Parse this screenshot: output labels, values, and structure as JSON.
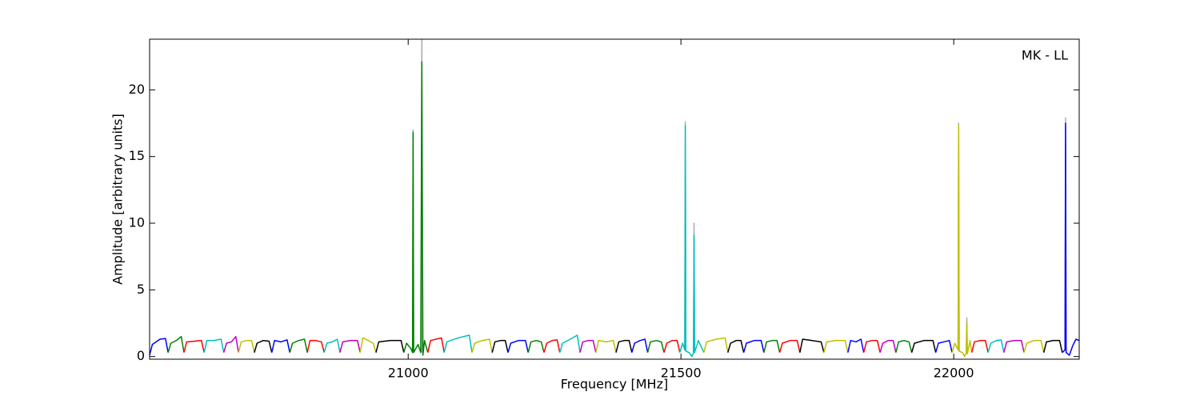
{
  "chart_data": {
    "type": "line",
    "annotation": "MK - LL",
    "x_label": "Frequency [MHz]",
    "y_label": "Amplitude [arbitrary units]",
    "xlim": [
      20526,
      22230
    ],
    "ylim": [
      -0.2,
      23.8
    ],
    "xticks": [
      21000,
      21500,
      22000
    ],
    "yticks": [
      0,
      5,
      10,
      15,
      20
    ],
    "series": [
      {
        "color": "#aaaaaa",
        "x": [
          21008,
          21009,
          21010,
          21010,
          21024,
          21025,
          21026,
          21026,
          21507,
          21508,
          21509,
          21509,
          21523,
          21524,
          21525,
          21525,
          22008,
          22009,
          22010,
          22010,
          22023,
          22024,
          22025,
          22025,
          22204,
          22205,
          22206
        ],
        "values": [
          0.3,
          17.0,
          0.3,
          null,
          0.3,
          23.8,
          0.3,
          null,
          0.5,
          17.6,
          0.4,
          null,
          0.3,
          10.0,
          0.3,
          null,
          0.5,
          17.5,
          0.4,
          null,
          0.3,
          2.9,
          0.2,
          null,
          0.5,
          17.9,
          0.3
        ]
      },
      {
        "color": "#0000ff",
        "x": [
          20526,
          20531,
          20545,
          20555,
          20560
        ],
        "values": [
          0.1,
          0.9,
          1.3,
          1.35,
          0.3
        ]
      },
      {
        "color": "#008000",
        "x": [
          20560,
          20565,
          20575,
          20584,
          20589
        ],
        "values": [
          0.3,
          1.0,
          1.2,
          1.5,
          0.3
        ]
      },
      {
        "color": "#ff0000",
        "x": [
          20589,
          20594,
          20608,
          20621,
          20626
        ],
        "values": [
          0.3,
          1.1,
          1.15,
          1.2,
          0.3
        ]
      },
      {
        "color": "#00bfbf",
        "x": [
          20626,
          20631,
          20644,
          20657,
          20662
        ],
        "values": [
          0.3,
          1.2,
          1.2,
          1.3,
          0.3
        ]
      },
      {
        "color": "#bf00bf",
        "x": [
          20662,
          20667,
          20676,
          20684,
          20689
        ],
        "values": [
          0.3,
          1.0,
          1.1,
          1.5,
          0.3
        ]
      },
      {
        "color": "#bfbf00",
        "x": [
          20689,
          20694,
          20704,
          20713,
          20718
        ],
        "values": [
          0.3,
          1.1,
          1.2,
          1.2,
          0.3
        ]
      },
      {
        "color": "#000000",
        "x": [
          20718,
          20723,
          20734,
          20745,
          20750
        ],
        "values": [
          0.3,
          1.0,
          1.2,
          1.15,
          0.3
        ]
      },
      {
        "color": "#0000ff",
        "x": [
          20750,
          20755,
          20767,
          20778,
          20783
        ],
        "values": [
          0.3,
          1.2,
          1.1,
          1.25,
          0.3
        ]
      },
      {
        "color": "#008000",
        "x": [
          20783,
          20788,
          20799,
          20810,
          20815
        ],
        "values": [
          0.3,
          1.0,
          1.2,
          1.3,
          0.3
        ]
      },
      {
        "color": "#ff0000",
        "x": [
          20815,
          20820,
          20831,
          20841,
          20846
        ],
        "values": [
          0.3,
          1.2,
          1.2,
          1.1,
          0.3
        ]
      },
      {
        "color": "#00bfbf",
        "x": [
          20846,
          20851,
          20861,
          20870,
          20875
        ],
        "values": [
          0.3,
          1.0,
          1.1,
          1.3,
          0.3
        ]
      },
      {
        "color": "#bf00bf",
        "x": [
          20875,
          20880,
          20894,
          20907,
          20912
        ],
        "values": [
          0.3,
          1.1,
          1.2,
          1.2,
          0.3
        ]
      },
      {
        "color": "#bfbf00",
        "x": [
          20912,
          20917,
          20927,
          20936,
          20941
        ],
        "values": [
          0.3,
          1.4,
          1.2,
          1.0,
          0.3
        ]
      },
      {
        "color": "#000000",
        "x": [
          20941,
          20946,
          20967,
          20987,
          20992
        ],
        "values": [
          0.3,
          1.1,
          1.2,
          1.2,
          0.3
        ]
      },
      {
        "color": "#008000",
        "x": [
          20992,
          20997,
          21005,
          21008,
          21009,
          21010,
          21018,
          21023,
          21025,
          21027,
          21030,
          21036
        ],
        "values": [
          0.3,
          1.0,
          0.6,
          0.3,
          16.8,
          0.3,
          0.9,
          0.3,
          22.1,
          0.1,
          1.2,
          0.3
        ]
      },
      {
        "color": "#ff0000",
        "x": [
          21036,
          21041,
          21051,
          21061,
          21066
        ],
        "values": [
          0.3,
          1.2,
          1.3,
          1.4,
          0.3
        ]
      },
      {
        "color": "#00bfbf",
        "x": [
          21066,
          21071,
          21092,
          21112,
          21117
        ],
        "values": [
          0.3,
          1.1,
          1.4,
          1.6,
          0.3
        ]
      },
      {
        "color": "#bfbf00",
        "x": [
          21117,
          21122,
          21136,
          21149,
          21154
        ],
        "values": [
          0.3,
          1.0,
          1.2,
          1.3,
          0.3
        ]
      },
      {
        "color": "#000000",
        "x": [
          21154,
          21159,
          21169,
          21178,
          21183
        ],
        "values": [
          0.3,
          1.1,
          1.2,
          1.2,
          0.3
        ]
      },
      {
        "color": "#0000ff",
        "x": [
          21183,
          21188,
          21202,
          21215,
          21220
        ],
        "values": [
          0.3,
          1.0,
          1.2,
          1.2,
          0.3
        ]
      },
      {
        "color": "#008000",
        "x": [
          21220,
          21225,
          21235,
          21244,
          21249
        ],
        "values": [
          0.3,
          1.1,
          1.2,
          1.1,
          0.3
        ]
      },
      {
        "color": "#ff0000",
        "x": [
          21249,
          21254,
          21264,
          21273,
          21278
        ],
        "values": [
          0.3,
          1.0,
          1.2,
          1.25,
          0.3
        ]
      },
      {
        "color": "#00bfbf",
        "x": [
          21278,
          21283,
          21297,
          21310,
          21315
        ],
        "values": [
          0.3,
          1.0,
          1.3,
          1.6,
          0.3
        ]
      },
      {
        "color": "#bf00bf",
        "x": [
          21315,
          21320,
          21330,
          21339,
          21344
        ],
        "values": [
          0.3,
          1.1,
          1.2,
          1.2,
          0.3
        ]
      },
      {
        "color": "#bfbf00",
        "x": [
          21344,
          21349,
          21363,
          21376,
          21381
        ],
        "values": [
          0.3,
          1.2,
          1.1,
          1.2,
          0.3
        ]
      },
      {
        "color": "#000000",
        "x": [
          21381,
          21386,
          21396,
          21405,
          21410
        ],
        "values": [
          0.3,
          1.1,
          1.2,
          1.2,
          0.3
        ]
      },
      {
        "color": "#0000ff",
        "x": [
          21410,
          21415,
          21425,
          21434,
          21439
        ],
        "values": [
          0.3,
          1.0,
          1.2,
          1.3,
          0.3
        ]
      },
      {
        "color": "#008000",
        "x": [
          21439,
          21444,
          21455,
          21464,
          21469
        ],
        "values": [
          0.3,
          1.1,
          1.2,
          1.1,
          0.3
        ]
      },
      {
        "color": "#ff0000",
        "x": [
          21469,
          21474,
          21484,
          21493,
          21498
        ],
        "values": [
          0.3,
          1.0,
          1.2,
          1.2,
          0.3
        ]
      },
      {
        "color": "#00bfbf",
        "x": [
          21498,
          21503,
          21507,
          21508,
          21509,
          21515,
          21520,
          21523,
          21524,
          21525,
          21532,
          21542
        ],
        "values": [
          0.3,
          1.0,
          0.5,
          17.3,
          0.4,
          0.3,
          0.0,
          0.3,
          9.1,
          0.3,
          1.2,
          0.3
        ]
      },
      {
        "color": "#bfbf00",
        "x": [
          21542,
          21547,
          21564,
          21581,
          21586
        ],
        "values": [
          0.3,
          1.1,
          1.3,
          1.4,
          0.3
        ]
      },
      {
        "color": "#000000",
        "x": [
          21586,
          21591,
          21601,
          21610,
          21615
        ],
        "values": [
          0.3,
          1.0,
          1.2,
          1.2,
          0.3
        ]
      },
      {
        "color": "#0000ff",
        "x": [
          21615,
          21620,
          21634,
          21647,
          21652
        ],
        "values": [
          0.3,
          1.0,
          1.2,
          1.2,
          0.3
        ]
      },
      {
        "color": "#008000",
        "x": [
          21652,
          21657,
          21667,
          21676,
          21681
        ],
        "values": [
          0.3,
          1.1,
          1.2,
          1.2,
          0.3
        ]
      },
      {
        "color": "#ff0000",
        "x": [
          21681,
          21686,
          21700,
          21713,
          21718
        ],
        "values": [
          0.3,
          1.0,
          1.2,
          1.2,
          0.3
        ]
      },
      {
        "color": "#000000",
        "x": [
          21718,
          21723,
          21740,
          21757,
          21762
        ],
        "values": [
          0.3,
          1.3,
          1.2,
          1.1,
          0.3
        ]
      },
      {
        "color": "#bfbf00",
        "x": [
          21762,
          21767,
          21784,
          21801,
          21806
        ],
        "values": [
          0.3,
          1.1,
          1.2,
          1.2,
          0.3
        ]
      },
      {
        "color": "#0000ff",
        "x": [
          21806,
          21811,
          21821,
          21830,
          21835
        ],
        "values": [
          0.3,
          1.2,
          1.1,
          1.3,
          0.3
        ]
      },
      {
        "color": "#ff0000",
        "x": [
          21835,
          21840,
          21850,
          21860,
          21865
        ],
        "values": [
          0.3,
          1.1,
          1.2,
          1.2,
          0.3
        ]
      },
      {
        "color": "#bf00bf",
        "x": [
          21865,
          21870,
          21880,
          21889,
          21894
        ],
        "values": [
          0.3,
          1.0,
          1.2,
          1.2,
          0.3
        ]
      },
      {
        "color": "#008000",
        "x": [
          21894,
          21899,
          21909,
          21918,
          21923
        ],
        "values": [
          0.3,
          1.1,
          1.2,
          1.1,
          0.3
        ]
      },
      {
        "color": "#000000",
        "x": [
          21923,
          21928,
          21945,
          21962,
          21967
        ],
        "values": [
          0.3,
          1.0,
          1.2,
          1.2,
          0.3
        ]
      },
      {
        "color": "#0000ff",
        "x": [
          21967,
          21972,
          21982,
          21992,
          21997
        ],
        "values": [
          0.3,
          1.0,
          1.1,
          1.2,
          0.3
        ]
      },
      {
        "color": "#bfbf00",
        "x": [
          21997,
          22002,
          22008,
          22009,
          22010,
          22016,
          22020,
          22023,
          22024,
          22025,
          22030,
          22033
        ],
        "values": [
          0.3,
          1.0,
          0.5,
          17.3,
          0.4,
          0.3,
          0.0,
          0.3,
          2.5,
          0.2,
          1.2,
          0.3
        ]
      },
      {
        "color": "#ff0000",
        "x": [
          22033,
          22038,
          22048,
          22058,
          22063
        ],
        "values": [
          0.3,
          1.1,
          1.2,
          1.2,
          0.3
        ]
      },
      {
        "color": "#00bfbf",
        "x": [
          22063,
          22068,
          22078,
          22087,
          22092
        ],
        "values": [
          0.3,
          1.0,
          1.2,
          1.25,
          0.3
        ]
      },
      {
        "color": "#bf00bf",
        "x": [
          22092,
          22097,
          22111,
          22124,
          22129
        ],
        "values": [
          0.3,
          1.1,
          1.2,
          1.2,
          0.3
        ]
      },
      {
        "color": "#bfbf00",
        "x": [
          22129,
          22134,
          22147,
          22160,
          22165
        ],
        "values": [
          0.3,
          1.0,
          1.2,
          1.2,
          0.3
        ]
      },
      {
        "color": "#000000",
        "x": [
          22165,
          22170,
          22182,
          22194,
          22199
        ],
        "values": [
          0.3,
          1.1,
          1.2,
          1.2,
          0.3
        ]
      },
      {
        "color": "#0000ff",
        "x": [
          22199,
          22204,
          22205,
          22206,
          22212,
          22218,
          22224,
          22230
        ],
        "values": [
          0.3,
          0.5,
          17.5,
          0.3,
          0.1,
          0.8,
          1.3,
          1.2
        ]
      }
    ]
  }
}
